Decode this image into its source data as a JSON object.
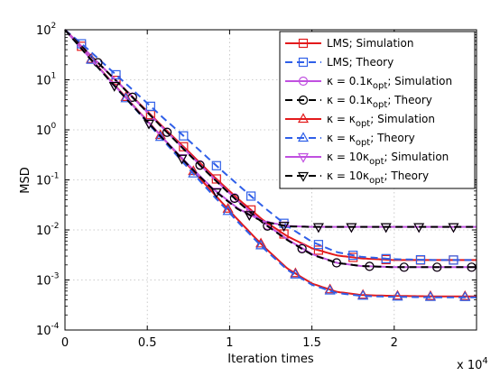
{
  "chart_data": {
    "type": "line",
    "xlabel": "Iteration times",
    "ylabel": "MSD",
    "x_multiplier_label": "x 10",
    "x_multiplier_exponent": "4",
    "xlim": [
      0,
      25000
    ],
    "ylim": [
      0.0001,
      100
    ],
    "y_scale": "log",
    "grid": true,
    "legend_position": "top-right",
    "x_ticks": [
      "0",
      "0.5",
      "1",
      "1.5",
      "2"
    ],
    "y_ticks": [
      {
        "base": "10",
        "exp": "-4"
      },
      {
        "base": "10",
        "exp": "-3"
      },
      {
        "base": "10",
        "exp": "-2"
      },
      {
        "base": "10",
        "exp": "-1"
      },
      {
        "base": "10",
        "exp": "0"
      },
      {
        "base": "10",
        "exp": "1"
      },
      {
        "base": "10",
        "exp": "2"
      }
    ],
    "series": [
      {
        "legend_parts": [
          {
            "t": "LMS; Simulation"
          }
        ],
        "color": "#e31a1c",
        "dash": "solid",
        "marker": "square",
        "x": [
          0,
          1500,
          3000,
          4500,
          6000,
          7500,
          9000,
          10500,
          12000,
          13500,
          15000,
          16500,
          18000,
          20000,
          22500,
          25000
        ],
        "y": [
          100,
          32,
          10.5,
          3.4,
          1.1,
          0.37,
          0.12,
          0.042,
          0.016,
          0.0075,
          0.0043,
          0.0031,
          0.0027,
          0.0025,
          0.0025,
          0.0025
        ],
        "markers_x": [
          1000,
          3100,
          5200,
          7200,
          9200,
          11300,
          13300,
          15400,
          17500,
          19500,
          21600,
          23600
        ]
      },
      {
        "legend_parts": [
          {
            "t": "LMS; Theory"
          }
        ],
        "color": "#2f5fe8",
        "dash": "dashed",
        "marker": "square",
        "x": [
          0,
          1500,
          3000,
          4500,
          6000,
          7500,
          9000,
          10500,
          12000,
          13500,
          15000,
          16500,
          18000,
          20000,
          22500,
          25000
        ],
        "y": [
          100,
          38,
          13.5,
          4.8,
          1.7,
          0.62,
          0.22,
          0.08,
          0.03,
          0.012,
          0.0058,
          0.0036,
          0.0029,
          0.0026,
          0.0025,
          0.0025
        ],
        "markers_x": [
          1000,
          3100,
          5200,
          7200,
          9200,
          11300,
          13300,
          15400,
          17500,
          19500,
          21600,
          23600
        ]
      },
      {
        "legend_parts": [
          {
            "t": "κ = 0.1κ"
          },
          {
            "t": "opt",
            "sub": true
          },
          {
            "t": "; Simulation"
          }
        ],
        "color": "#c050e0",
        "dash": "solid",
        "marker": "circle",
        "x": [
          0,
          1500,
          3000,
          4500,
          6000,
          7500,
          9000,
          10500,
          12000,
          13500,
          15000,
          16500,
          18000,
          20000,
          22500,
          25000
        ],
        "y": [
          100,
          32,
          10.5,
          3.3,
          1.05,
          0.34,
          0.11,
          0.038,
          0.0145,
          0.0065,
          0.0033,
          0.0022,
          0.0019,
          0.0018,
          0.0018,
          0.0018
        ],
        "markers_x": [
          2000,
          4100,
          6200,
          8200,
          10300,
          12300,
          14400,
          16500,
          18500,
          20600,
          22600,
          24700
        ]
      },
      {
        "legend_parts": [
          {
            "t": "κ = 0.1κ"
          },
          {
            "t": "opt",
            "sub": true
          },
          {
            "t": "; Theory"
          }
        ],
        "color": "#000000",
        "dash": "dashed",
        "marker": "circle",
        "x": [
          0,
          1500,
          3000,
          4500,
          6000,
          7500,
          9000,
          10500,
          12000,
          13500,
          15000,
          16500,
          18000,
          20000,
          22500,
          25000
        ],
        "y": [
          100,
          32,
          10.4,
          3.3,
          1.04,
          0.33,
          0.108,
          0.037,
          0.014,
          0.0063,
          0.0032,
          0.0022,
          0.0019,
          0.0018,
          0.0018,
          0.0018
        ],
        "markers_x": [
          2000,
          4100,
          6200,
          8200,
          10300,
          12300,
          14400,
          16500,
          18500,
          20600,
          22600,
          24700
        ]
      },
      {
        "legend_parts": [
          {
            "t": "κ = κ"
          },
          {
            "t": "opt",
            "sub": true
          },
          {
            "t": "; Simulation"
          }
        ],
        "color": "#e31a1c",
        "dash": "solid",
        "marker": "triangle-up",
        "x": [
          0,
          1500,
          3000,
          4500,
          6000,
          7500,
          9000,
          10500,
          12000,
          13500,
          15000,
          16500,
          18000,
          20000,
          22500,
          25000
        ],
        "y": [
          100,
          28,
          8,
          2.3,
          0.66,
          0.19,
          0.055,
          0.016,
          0.0049,
          0.0017,
          0.00085,
          0.00058,
          0.0005,
          0.00048,
          0.00047,
          0.00047
        ],
        "markers_x": [
          1600,
          3700,
          5800,
          7800,
          9900,
          11900,
          14000,
          16100,
          18100,
          20200,
          22200,
          24300
        ]
      },
      {
        "legend_parts": [
          {
            "t": "κ = κ"
          },
          {
            "t": "opt",
            "sub": true
          },
          {
            "t": "; Theory"
          }
        ],
        "color": "#2f5fe8",
        "dash": "dashed",
        "marker": "triangle-up",
        "x": [
          0,
          1500,
          3000,
          4500,
          6000,
          7500,
          9000,
          10500,
          12000,
          13500,
          15000,
          16500,
          18000,
          20000,
          22500,
          25000
        ],
        "y": [
          100,
          27,
          7.6,
          2.15,
          0.6,
          0.17,
          0.049,
          0.0145,
          0.0045,
          0.0016,
          0.0008,
          0.00055,
          0.00048,
          0.00046,
          0.00045,
          0.00045
        ],
        "markers_x": [
          1600,
          3700,
          5800,
          7800,
          9900,
          11900,
          14000,
          16100,
          18100,
          20200,
          22200,
          24300
        ]
      },
      {
        "legend_parts": [
          {
            "t": "κ = 10κ"
          },
          {
            "t": "opt",
            "sub": true
          },
          {
            "t": "; Simulation"
          }
        ],
        "color": "#c050e0",
        "dash": "solid",
        "marker": "triangle-down",
        "x": [
          0,
          1500,
          3000,
          4500,
          6000,
          7500,
          9000,
          10500,
          12000,
          13500,
          15000,
          16500,
          18000,
          20000,
          22500,
          25000
        ],
        "y": [
          100,
          27.5,
          7.8,
          2.25,
          0.66,
          0.2,
          0.066,
          0.027,
          0.015,
          0.012,
          0.0115,
          0.0115,
          0.0115,
          0.0115,
          0.0115,
          0.0115
        ],
        "markers_x": [
          3000,
          5100,
          7100,
          9200,
          11200,
          13300,
          15400,
          17400,
          19500,
          21500,
          23600
        ]
      },
      {
        "legend_parts": [
          {
            "t": "κ = 10κ"
          },
          {
            "t": "opt",
            "sub": true
          },
          {
            "t": "; Theory"
          }
        ],
        "color": "#000000",
        "dash": "dashed",
        "marker": "triangle-down",
        "x": [
          0,
          1500,
          3000,
          4500,
          6000,
          7500,
          9000,
          10500,
          12000,
          13500,
          15000,
          16500,
          18000,
          20000,
          22500,
          25000
        ],
        "y": [
          100,
          27,
          7.6,
          2.2,
          0.64,
          0.195,
          0.064,
          0.026,
          0.0148,
          0.0118,
          0.0115,
          0.0115,
          0.0115,
          0.0115,
          0.0115,
          0.0115
        ],
        "markers_x": [
          3000,
          5100,
          7100,
          9200,
          11200,
          13300,
          15400,
          17400,
          19500,
          21500,
          23600
        ]
      }
    ]
  }
}
